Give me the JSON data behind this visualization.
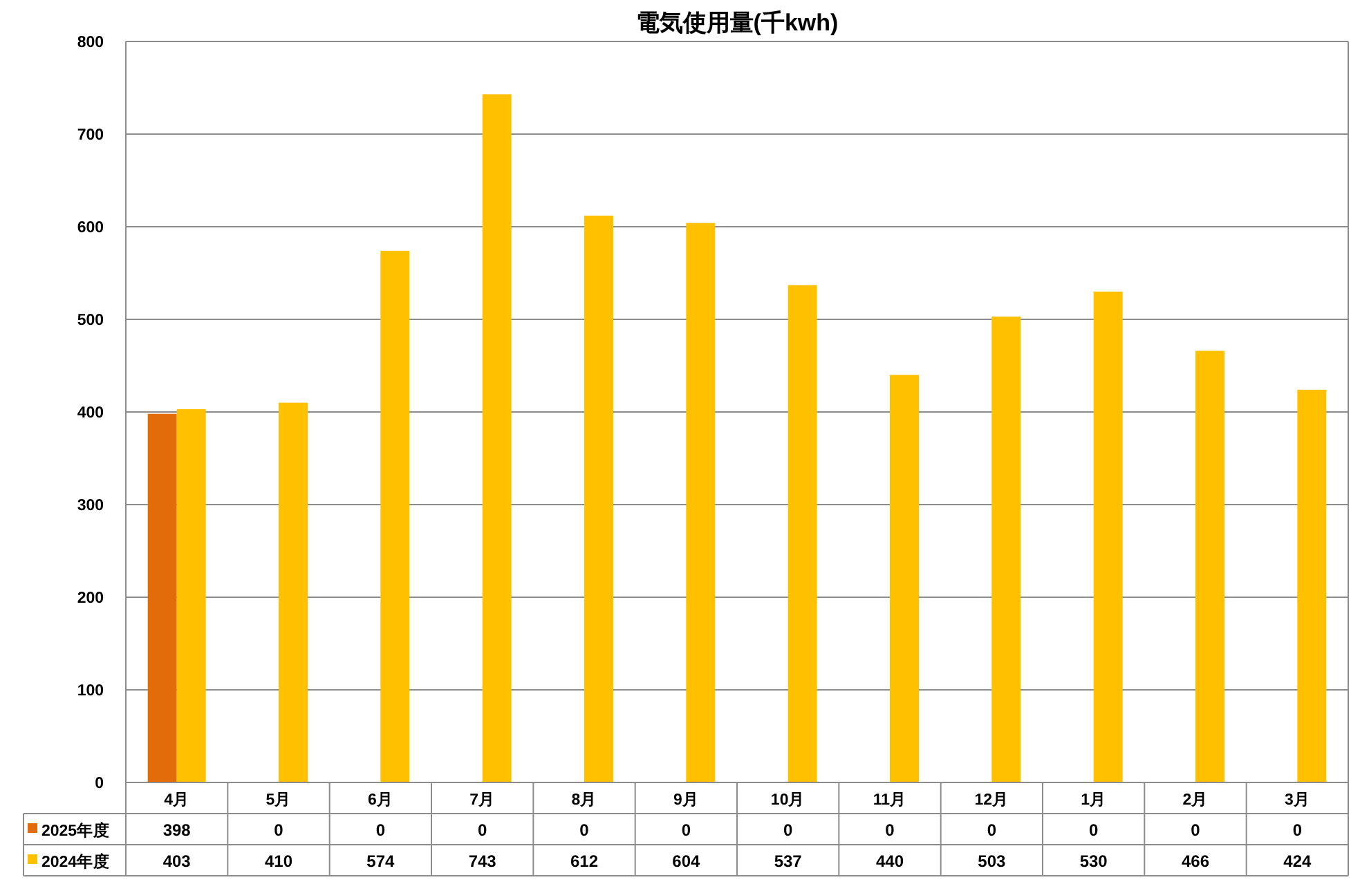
{
  "chart_data": {
    "type": "bar",
    "title": "電気使用量(千kwh)",
    "categories": [
      "4月",
      "5月",
      "6月",
      "7月",
      "8月",
      "9月",
      "10月",
      "11月",
      "12月",
      "1月",
      "2月",
      "3月"
    ],
    "series": [
      {
        "name": "2025年度",
        "color": "#e36c0a",
        "values": [
          398,
          0,
          0,
          0,
          0,
          0,
          0,
          0,
          0,
          0,
          0,
          0
        ]
      },
      {
        "name": "2024年度",
        "color": "#ffc000",
        "values": [
          403,
          410,
          574,
          743,
          612,
          604,
          537,
          440,
          503,
          530,
          466,
          424
        ]
      }
    ],
    "ylim": [
      0,
      800
    ],
    "yticks": [
      0,
      100,
      200,
      300,
      400,
      500,
      600,
      700,
      800
    ],
    "grid": "y",
    "legend": "bottom left",
    "data_labels": true
  }
}
